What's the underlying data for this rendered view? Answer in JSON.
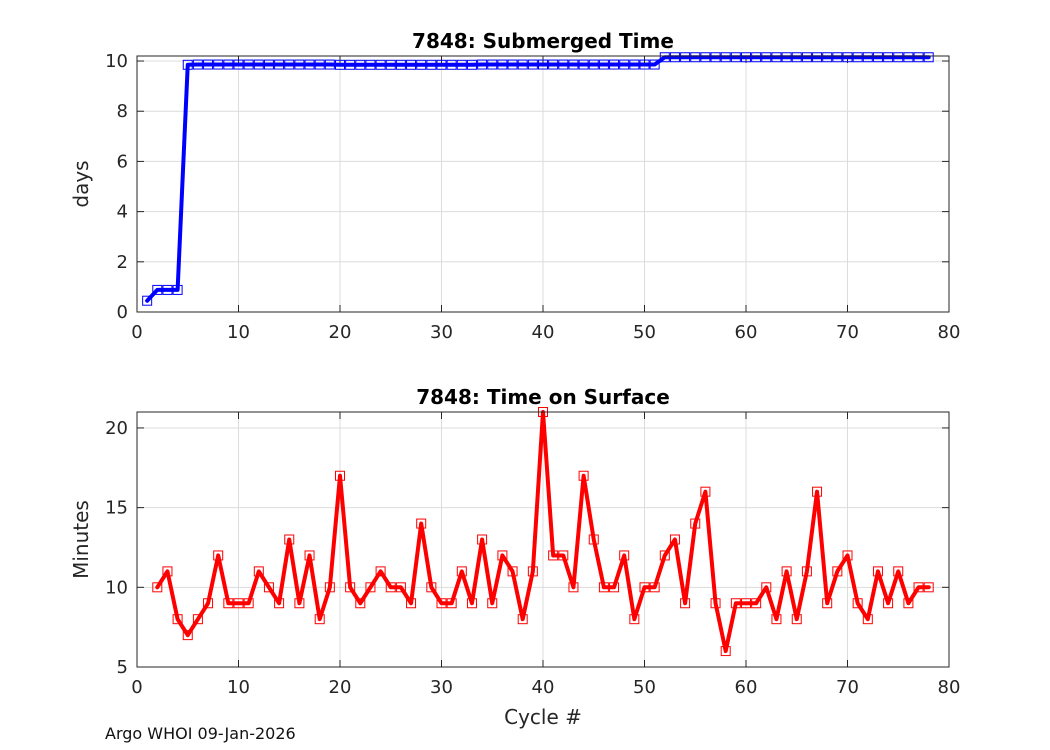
{
  "footer": "Argo WHOI 09-Jan-2026",
  "chart_data": [
    {
      "type": "line",
      "title": "7848: Submerged Time",
      "xlabel": "",
      "ylabel": "days",
      "xlim": [
        0,
        80
      ],
      "ylim": [
        0,
        10.2
      ],
      "xticks": [
        0,
        10,
        20,
        30,
        40,
        50,
        60,
        70,
        80
      ],
      "yticks": [
        0,
        2,
        4,
        6,
        8,
        10
      ],
      "grid": true,
      "color": "#0000ff",
      "marker": "square",
      "series": [
        {
          "x": [
            1,
            2,
            3,
            4,
            5,
            6,
            7,
            8,
            9,
            10,
            11,
            12,
            13,
            14,
            15,
            16,
            17,
            18,
            19,
            20,
            21,
            22,
            23,
            24,
            25,
            26,
            27,
            28,
            29,
            30,
            31,
            32,
            33,
            34,
            35,
            36,
            37,
            38,
            39,
            40,
            41,
            42,
            43,
            44,
            45,
            46,
            47,
            48,
            49,
            50,
            51,
            52,
            53,
            54,
            55,
            56,
            57,
            58,
            59,
            60,
            61,
            62,
            63,
            64,
            65,
            66,
            67,
            68,
            69,
            70,
            71,
            72,
            73,
            74,
            75,
            76,
            77,
            78
          ],
          "values": [
            0.45,
            0.88,
            0.88,
            0.88,
            9.85,
            9.86,
            9.86,
            9.86,
            9.86,
            9.86,
            9.86,
            9.86,
            9.86,
            9.86,
            9.86,
            9.86,
            9.86,
            9.86,
            9.86,
            9.85,
            9.85,
            9.85,
            9.85,
            9.85,
            9.85,
            9.85,
            9.85,
            9.85,
            9.85,
            9.85,
            9.85,
            9.85,
            9.85,
            9.86,
            9.86,
            9.86,
            9.86,
            9.86,
            9.86,
            9.86,
            9.86,
            9.86,
            9.86,
            9.86,
            9.86,
            9.86,
            9.86,
            9.86,
            9.86,
            9.86,
            9.86,
            10.15,
            10.15,
            10.15,
            10.15,
            10.15,
            10.15,
            10.15,
            10.15,
            10.15,
            10.15,
            10.15,
            10.15,
            10.15,
            10.15,
            10.15,
            10.15,
            10.15,
            10.15,
            10.15,
            10.15,
            10.15,
            10.15,
            10.15,
            10.15,
            10.15,
            10.15,
            10.15
          ]
        }
      ]
    },
    {
      "type": "line",
      "title": "7848: Time on Surface",
      "xlabel": "Cycle #",
      "ylabel": "Minutes",
      "xlim": [
        0,
        80
      ],
      "ylim": [
        5,
        21
      ],
      "xticks": [
        0,
        10,
        20,
        30,
        40,
        50,
        60,
        70,
        80
      ],
      "yticks": [
        5,
        10,
        15,
        20
      ],
      "grid": true,
      "color": "#ff0000",
      "marker": "square",
      "series": [
        {
          "x": [
            2,
            3,
            4,
            5,
            6,
            7,
            8,
            9,
            10,
            11,
            12,
            13,
            14,
            15,
            16,
            17,
            18,
            19,
            20,
            21,
            22,
            23,
            24,
            25,
            26,
            27,
            28,
            29,
            30,
            31,
            32,
            33,
            34,
            35,
            36,
            37,
            38,
            39,
            40,
            41,
            42,
            43,
            44,
            45,
            46,
            47,
            48,
            49,
            50,
            51,
            52,
            53,
            54,
            55,
            56,
            57,
            58,
            59,
            60,
            61,
            62,
            63,
            64,
            65,
            66,
            67,
            68,
            69,
            70,
            71,
            72,
            73,
            74,
            75,
            76,
            77,
            78
          ],
          "values": [
            10,
            11,
            8,
            7,
            8,
            9,
            12,
            9,
            9,
            9,
            11,
            10,
            9,
            13,
            9,
            12,
            8,
            10,
            17,
            10,
            9,
            10,
            11,
            10,
            10,
            9,
            14,
            10,
            9,
            9,
            11,
            9,
            13,
            9,
            12,
            11,
            8,
            11,
            21,
            12,
            12,
            10,
            17,
            13,
            10,
            10,
            12,
            8,
            10,
            10,
            12,
            13,
            9,
            14,
            16,
            9,
            6,
            9,
            9,
            9,
            10,
            8,
            11,
            8,
            11,
            16,
            9,
            11,
            12,
            9,
            8,
            11,
            9,
            11,
            9,
            10,
            10
          ]
        }
      ]
    }
  ]
}
